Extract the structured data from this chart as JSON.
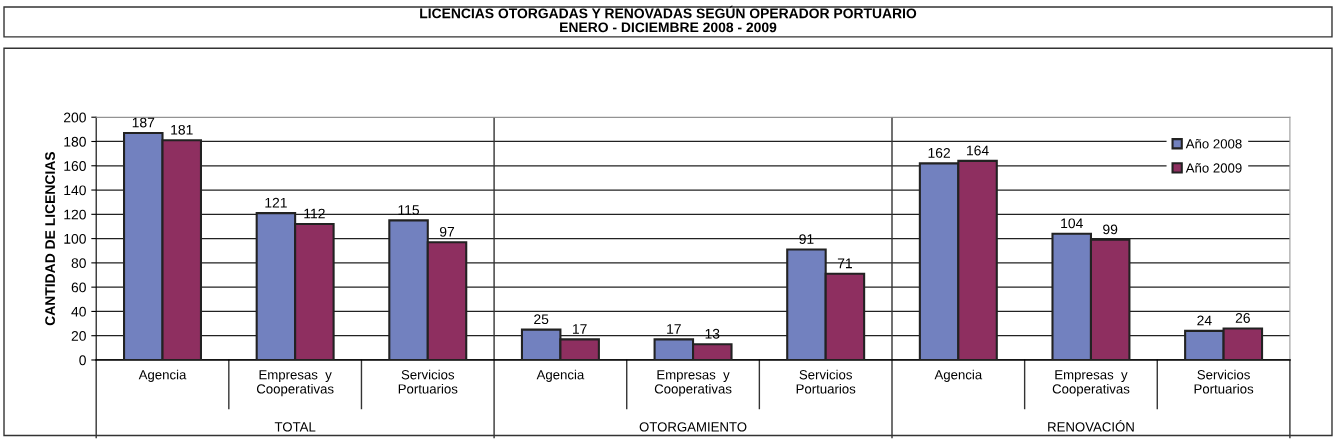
{
  "chart_data": {
    "type": "bar",
    "title": "LICENCIAS OTORGADAS Y RENOVADAS SEGÚN OPERADOR PORTUARIO\nENERO - DICIEMBRE 2008 - 2009",
    "ylabel": "CANTIDAD DE LICENCIAS",
    "categories": [
      "Agencia",
      "Empresas  y\nCooperativas",
      "Servicios\nPortuarios",
      "Agencia",
      "Empresas  y\nCooperativas",
      "Servicios\nPortuarios",
      "Agencia",
      "Empresas  y\nCooperativas",
      "Servicios\nPortuarios"
    ],
    "annotations": [
      "TOTAL",
      "OTORGAMIENTO",
      "RENOVACIÓN"
    ],
    "series": [
      {
        "name": "Año 2008",
        "color": "#7281bf",
        "values": [
          187,
          121,
          115,
          25,
          17,
          91,
          162,
          104,
          24
        ]
      },
      {
        "name": "Año 2009",
        "color": "#8e2f60",
        "values": [
          181,
          112,
          97,
          17,
          13,
          71,
          164,
          99,
          26
        ]
      }
    ],
    "ylim": [
      0,
      200
    ],
    "yticks": [
      0,
      20,
      40,
      60,
      80,
      100,
      120,
      140,
      160,
      180,
      200
    ],
    "grid": "y",
    "legend": "top right",
    "data_labels": true
  }
}
